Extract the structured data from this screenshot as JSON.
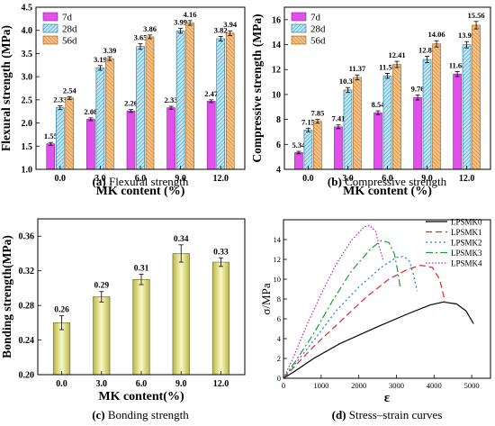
{
  "chart_data": [
    {
      "type": "bar",
      "caption_letter": "(a)",
      "caption_text": " Flexural strength",
      "xlabel": "MK content (%)",
      "ylabel": "Flexural strength (MPa)",
      "categories": [
        "0.0",
        "3.0",
        "6.0",
        "9.0",
        "12.0"
      ],
      "ylim": [
        1.0,
        4.5
      ],
      "yticks": [
        "1.0",
        "1.5",
        "2.0",
        "2.5",
        "3.0",
        "3.5",
        "4.0",
        "4.5"
      ],
      "legend": "top-left",
      "series": [
        {
          "name": "7d",
          "values": [
            1.55,
            2.08,
            2.26,
            2.33,
            2.47
          ],
          "labels": [
            "1.55",
            "2.08",
            "2.26",
            "2.33",
            "2.47"
          ],
          "err": [
            0.03,
            0.03,
            0.03,
            0.03,
            0.03
          ]
        },
        {
          "name": "28d",
          "values": [
            2.33,
            3.19,
            3.65,
            3.99,
            3.82
          ],
          "labels": [
            "2.33",
            "3.19",
            "3.65",
            "3.99",
            "3.82"
          ],
          "err": [
            0.04,
            0.05,
            0.06,
            0.05,
            0.05
          ]
        },
        {
          "name": "56d",
          "values": [
            2.54,
            3.39,
            3.86,
            4.16,
            3.94
          ],
          "labels": [
            "2.54",
            "3.39",
            "3.86",
            "4.16",
            "3.94"
          ],
          "err": [
            0.03,
            0.04,
            0.04,
            0.05,
            0.05
          ]
        }
      ]
    },
    {
      "type": "bar",
      "caption_letter": "(b)",
      "caption_text": " Compressive strength",
      "xlabel": "MK content (%)",
      "ylabel": "Compressive strength (MPa)",
      "categories": [
        "0.0",
        "3.0",
        "6.0",
        "9.0",
        "12.0"
      ],
      "ylim": [
        4,
        17
      ],
      "yticks": [
        "4",
        "6",
        "8",
        "10",
        "12",
        "14",
        "16"
      ],
      "legend": "top-left",
      "series": [
        {
          "name": "7d",
          "values": [
            5.34,
            7.41,
            8.54,
            9.76,
            11.64
          ],
          "labels": [
            "5.34",
            "7.41",
            "8.54",
            "9.76",
            "11.64"
          ],
          "err": [
            0.1,
            0.15,
            0.15,
            0.2,
            0.2
          ]
        },
        {
          "name": "28d",
          "values": [
            7.15,
            10.36,
            11.5,
            12.81,
            13.99
          ],
          "labels": [
            "7.15",
            "10.36",
            "11.50",
            "12.81",
            "13.99"
          ],
          "err": [
            0.15,
            0.2,
            0.2,
            0.25,
            0.25
          ]
        },
        {
          "name": "56d",
          "values": [
            7.85,
            11.37,
            12.41,
            14.06,
            15.56
          ],
          "labels": [
            "7.85",
            "11.37",
            "12.41",
            "14.06",
            "15.56"
          ],
          "err": [
            0.15,
            0.2,
            0.25,
            0.25,
            0.3
          ]
        }
      ]
    },
    {
      "type": "bar",
      "caption_letter": "(c)",
      "caption_text": " Bonding strength",
      "xlabel": "MK content(%)",
      "ylabel": "Bonding strength(MPa)",
      "categories": [
        "0.0",
        "3.0",
        "6.0",
        "9.0",
        "12.0"
      ],
      "ylim": [
        0.2,
        0.38
      ],
      "yticks": [
        "0.20",
        "0.24",
        "0.28",
        "0.32",
        "0.36"
      ],
      "series": [
        {
          "values": [
            0.26,
            0.29,
            0.31,
            0.34,
            0.33
          ],
          "labels": [
            "0.26",
            "0.29",
            "0.31",
            "0.34",
            "0.33"
          ],
          "err": [
            0.008,
            0.006,
            0.006,
            0.01,
            0.005
          ]
        }
      ]
    },
    {
      "type": "line",
      "caption_letter": "(d)",
      "caption_text": " Stress–strain curves",
      "xlabel": "ε",
      "ylabel": "σ/MPa",
      "xlim": [
        0,
        5500
      ],
      "ylim": [
        0,
        16
      ],
      "xticks": [
        "0",
        "1000",
        "2000",
        "3000",
        "4000",
        "5000"
      ],
      "yticks": [
        "0",
        "2",
        "4",
        "6",
        "8",
        "10",
        "12",
        "14"
      ],
      "legend": "top-right",
      "series": [
        {
          "name": "LPSMK0",
          "color": "#000000",
          "dash": "",
          "points": [
            [
              0,
              0
            ],
            [
              300,
              0.7
            ],
            [
              800,
              2.0
            ],
            [
              1500,
              3.5
            ],
            [
              2500,
              5.2
            ],
            [
              3300,
              6.5
            ],
            [
              3900,
              7.4
            ],
            [
              4250,
              7.7
            ],
            [
              4600,
              7.5
            ],
            [
              4850,
              6.8
            ],
            [
              5050,
              5.5
            ]
          ]
        },
        {
          "name": "LPSMK1",
          "color": "#e8262a",
          "dash": "7,4",
          "points": [
            [
              0,
              0
            ],
            [
              300,
              1.2
            ],
            [
              800,
              3.2
            ],
            [
              1500,
              5.7
            ],
            [
              2200,
              8.2
            ],
            [
              2800,
              10.0
            ],
            [
              3300,
              11.0
            ],
            [
              3650,
              11.4
            ],
            [
              3950,
              11.2
            ],
            [
              4150,
              10.0
            ],
            [
              4300,
              7.6
            ]
          ]
        },
        {
          "name": "LPSMK2",
          "color": "#1f78d1",
          "dash": "2,3",
          "points": [
            [
              0,
              0
            ],
            [
              300,
              1.4
            ],
            [
              800,
              3.8
            ],
            [
              1400,
              6.8
            ],
            [
              2000,
              9.2
            ],
            [
              2600,
              11.2
            ],
            [
              3000,
              12.2
            ],
            [
              3200,
              12.3
            ],
            [
              3350,
              11.8
            ],
            [
              3450,
              10.5
            ],
            [
              3550,
              8.8
            ]
          ]
        },
        {
          "name": "LPSMK3",
          "color": "#1a9e3a",
          "dash": "8,3,2,3",
          "points": [
            [
              0,
              0
            ],
            [
              300,
              1.6
            ],
            [
              800,
              4.5
            ],
            [
              1300,
              7.8
            ],
            [
              1800,
              10.8
            ],
            [
              2300,
              13.0
            ],
            [
              2600,
              13.9
            ],
            [
              2800,
              13.7
            ],
            [
              2950,
              12.5
            ],
            [
              3050,
              10.5
            ],
            [
              3100,
              9.2
            ]
          ]
        },
        {
          "name": "LPSMK4",
          "color": "#c020c8",
          "dash": "1.5,2",
          "points": [
            [
              0,
              0
            ],
            [
              250,
              2.0
            ],
            [
              600,
              5.2
            ],
            [
              1000,
              8.5
            ],
            [
              1400,
              11.5
            ],
            [
              1800,
              13.9
            ],
            [
              2150,
              15.3
            ],
            [
              2300,
              15.4
            ],
            [
              2450,
              14.8
            ],
            [
              2550,
              13.2
            ],
            [
              2650,
              11.9
            ]
          ]
        }
      ]
    }
  ]
}
